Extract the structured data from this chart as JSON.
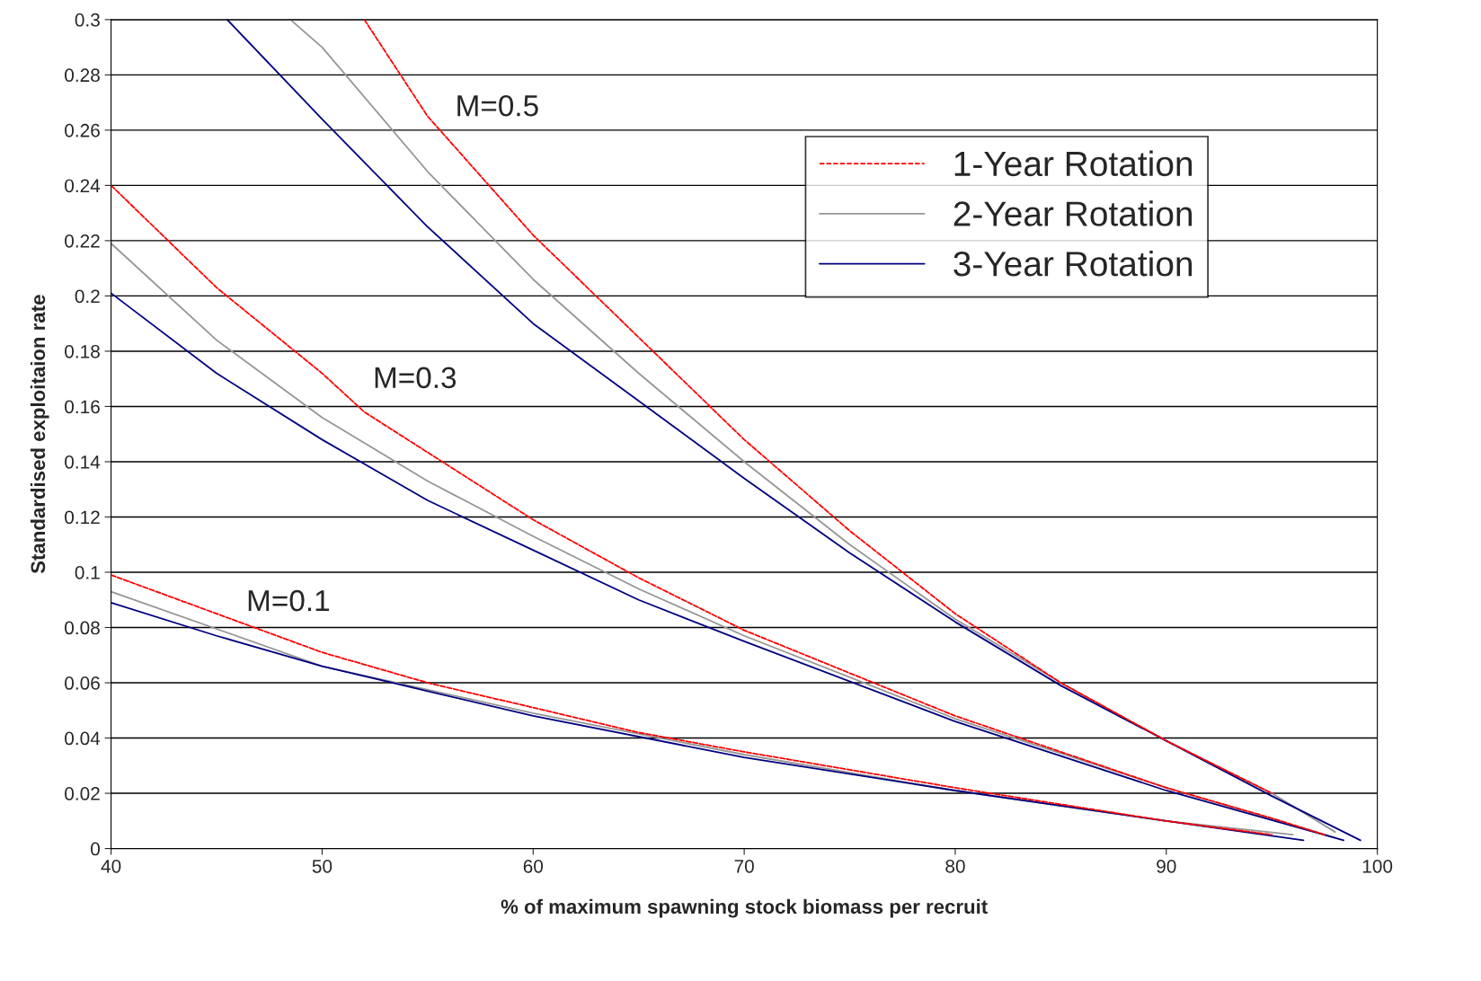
{
  "chart_data": {
    "type": "line",
    "xlabel": "% of maximum spawning stock biomass per recruit",
    "ylabel": "Standardised exploitaion rate",
    "xlim": [
      40,
      100
    ],
    "xticks": [
      40,
      50,
      60,
      70,
      80,
      90,
      100
    ],
    "ylim": [
      0,
      0.3
    ],
    "yticks": [
      0,
      0.02,
      0.04,
      0.06,
      0.08,
      0.1,
      0.12,
      0.14,
      0.16,
      0.18,
      0.2,
      0.22,
      0.24,
      0.26,
      0.28,
      0.3
    ],
    "grid": "y",
    "legend": "top right",
    "marker": "none",
    "annotations": [
      "M=0.5",
      "M=0.3",
      "M=0.1"
    ],
    "series": [
      {
        "name": "1-Year Rotation",
        "color": "#ff0000",
        "line_style": "dashed",
        "x": [
          40,
          45,
          50,
          52,
          60,
          65,
          70,
          80,
          90,
          95,
          97.5
        ],
        "values": [
          0.24,
          0.203,
          0.172,
          0.158,
          0.119,
          0.098,
          0.079,
          0.048,
          0.022,
          0.011,
          0.005
        ]
      },
      {
        "name": "2-Year Rotation",
        "color": "#969696",
        "line_style": "solid",
        "x": [
          40,
          45,
          50,
          55,
          60,
          65,
          70,
          80,
          90,
          98
        ],
        "values": [
          0.219,
          0.184,
          0.156,
          0.133,
          0.113,
          0.094,
          0.077,
          0.047,
          0.022,
          0.004
        ]
      },
      {
        "name": "3-Year Rotation",
        "color": "#000080",
        "line_style": "solid",
        "x": [
          40,
          45,
          50,
          55,
          60,
          65,
          70,
          80,
          90,
          98.4
        ],
        "values": [
          0.201,
          0.172,
          0.148,
          0.126,
          0.108,
          0.09,
          0.075,
          0.046,
          0.021,
          0.003
        ]
      },
      {
        "color": "#ff0000",
        "line_style": "dashed",
        "x": [
          52,
          55,
          60,
          65,
          70,
          75,
          80,
          85,
          90,
          95
        ],
        "values": [
          0.3,
          0.265,
          0.222,
          0.185,
          0.148,
          0.115,
          0.085,
          0.06,
          0.039,
          0.02
        ]
      },
      {
        "color": "#969696",
        "line_style": "solid",
        "x": [
          48.5,
          50,
          55,
          60,
          65,
          70,
          75,
          80,
          85,
          90,
          95,
          98
        ],
        "values": [
          0.3,
          0.29,
          0.245,
          0.206,
          0.172,
          0.14,
          0.11,
          0.083,
          0.06,
          0.039,
          0.02,
          0.006
        ]
      },
      {
        "color": "#000080",
        "line_style": "solid",
        "x": [
          45.5,
          50,
          55,
          60,
          65,
          70,
          75,
          80,
          85,
          90,
          95,
          99.2
        ],
        "values": [
          0.3,
          0.264,
          0.225,
          0.19,
          0.162,
          0.134,
          0.107,
          0.082,
          0.059,
          0.039,
          0.019,
          0.003
        ]
      },
      {
        "color": "#ff0000",
        "line_style": "dashed",
        "x": [
          40,
          45,
          50,
          55,
          60,
          65,
          70,
          80,
          90,
          95
        ],
        "values": [
          0.099,
          0.085,
          0.071,
          0.06,
          0.051,
          0.042,
          0.035,
          0.022,
          0.01,
          0.005
        ]
      },
      {
        "color": "#969696",
        "line_style": "solid",
        "x": [
          40,
          50,
          60,
          70,
          80,
          90,
          96
        ],
        "values": [
          0.093,
          0.066,
          0.049,
          0.034,
          0.021,
          0.01,
          0.005
        ]
      },
      {
        "color": "#000080",
        "line_style": "solid",
        "x": [
          40,
          45,
          50,
          55,
          60,
          70,
          80,
          90,
          96.5
        ],
        "values": [
          0.089,
          0.077,
          0.066,
          0.057,
          0.048,
          0.033,
          0.021,
          0.01,
          0.003
        ]
      }
    ]
  }
}
